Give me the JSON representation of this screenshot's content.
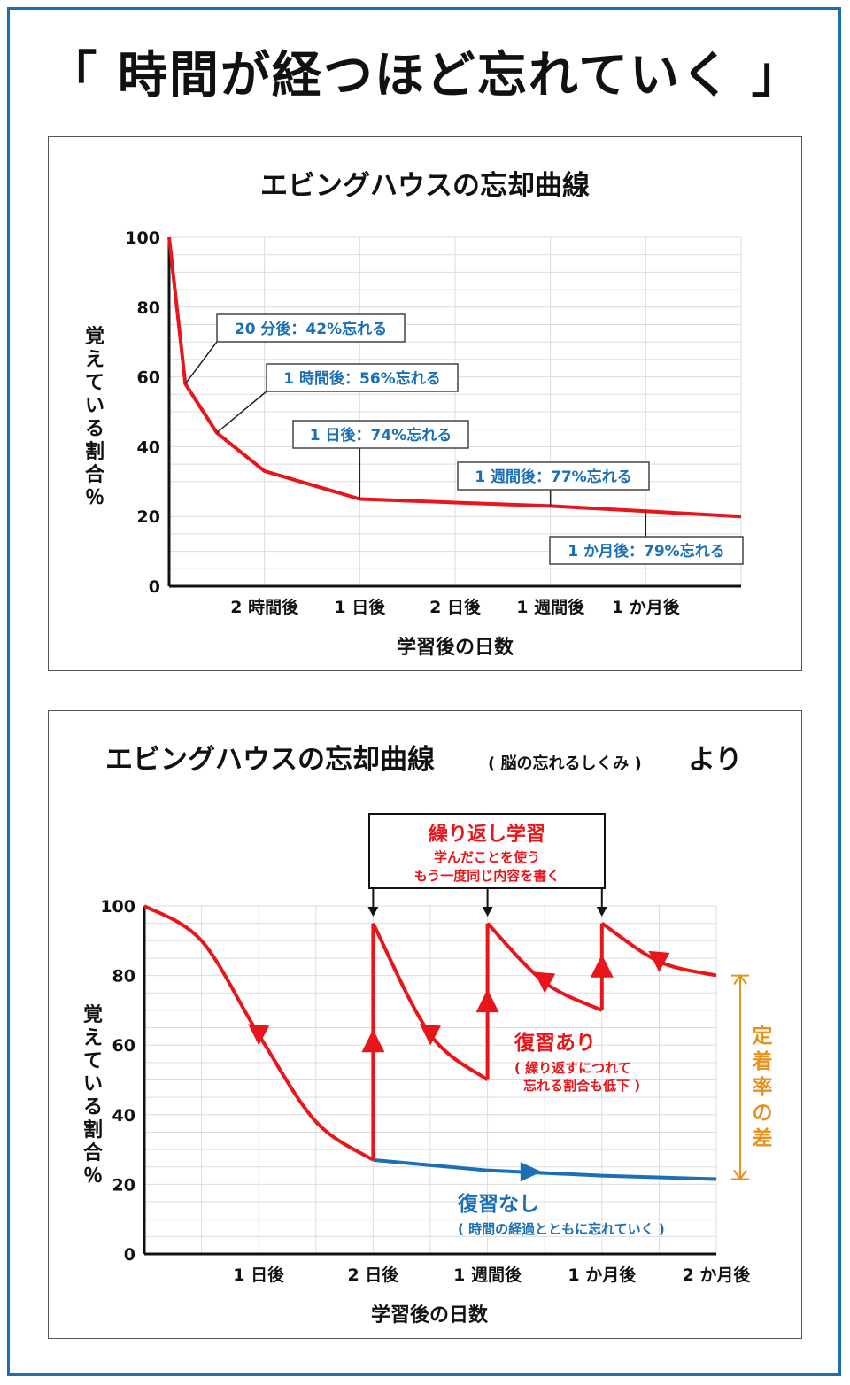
{
  "page_title": "「 時間が経つほど忘れていく 」",
  "colors": {
    "frame": "#1a6fb5",
    "red": "#e8151b",
    "blue": "#1a6fb5",
    "orange": "#e8901c",
    "label_blue": "#1a6fb5"
  },
  "chart_data": [
    {
      "type": "line",
      "title": "エビングハウスの忘却曲線",
      "xlabel": "学習後の日数",
      "ylabel": "覚えている割合％",
      "ylim": [
        0,
        100
      ],
      "yticks": [
        "0",
        "20",
        "40",
        "60",
        "80",
        "100"
      ],
      "xticks": [
        "2 時間後",
        "1 日後",
        "2 日後",
        "1 週間後",
        "1 か月後"
      ],
      "series": [
        {
          "values": [
            {
              "x": 0,
              "y": 100
            },
            {
              "x": 0.17,
              "y": 58
            },
            {
              "x": 0.5,
              "y": 44
            },
            {
              "x": 1,
              "y": 33
            },
            {
              "x": 2,
              "y": 25
            },
            {
              "x": 3,
              "y": 24
            },
            {
              "x": 4,
              "y": 23
            },
            {
              "x": 5,
              "y": 21.5
            },
            {
              "x": 6,
              "y": 20
            }
          ]
        }
      ],
      "annotations": [
        {
          "text": "20 分後：42%忘れる",
          "x": 0.17,
          "y": 58
        },
        {
          "text": "1 時間後：56%忘れる",
          "x": 0.5,
          "y": 44
        },
        {
          "text": "1 日後：74%忘れる",
          "x": 2,
          "y": 25
        },
        {
          "text": "1 週間後：77%忘れる",
          "x": 4,
          "y": 23
        },
        {
          "text": "1 か月後：79%忘れる",
          "x": 5,
          "y": 21.5
        }
      ]
    },
    {
      "type": "line",
      "title": "エビングハウスの忘却曲線",
      "title_note": "( 脳の忘れるしくみ )",
      "title_suffix": "より",
      "xlabel": "学習後の日数",
      "ylabel": "覚えている割合％",
      "ylim": [
        0,
        100
      ],
      "yticks": [
        "0",
        "20",
        "40",
        "60",
        "80",
        "100"
      ],
      "xticks": [
        "1 日後",
        "2 日後",
        "1 週間後",
        "1 か月後",
        "2 か月後"
      ],
      "review_box": {
        "title": "繰り返し学習",
        "line1": "学んだことを使う",
        "line2": "もう一度同じ内容を書く"
      },
      "series": [
        {
          "name": "復習あり",
          "note": "( 繰り返すにつれて",
          "note2": "忘れる割合も低下 )",
          "segments": [
            [
              {
                "x": 0,
                "y": 100
              },
              {
                "x": 0.5,
                "y": 90
              },
              {
                "x": 1,
                "y": 63
              },
              {
                "x": 1.5,
                "y": 38
              },
              {
                "x": 2,
                "y": 27
              }
            ],
            [
              {
                "x": 2,
                "y": 95
              },
              {
                "x": 2.5,
                "y": 63
              },
              {
                "x": 3,
                "y": 50
              }
            ],
            [
              {
                "x": 3,
                "y": 95
              },
              {
                "x": 3.5,
                "y": 78
              },
              {
                "x": 4,
                "y": 70
              }
            ],
            [
              {
                "x": 4,
                "y": 95
              },
              {
                "x": 4.5,
                "y": 84
              },
              {
                "x": 5,
                "y": 80
              }
            ]
          ]
        },
        {
          "name": "復習なし",
          "note": "( 時間の経過とともに忘れていく )",
          "values": [
            {
              "x": 2,
              "y": 27
            },
            {
              "x": 3,
              "y": 24
            },
            {
              "x": 4,
              "y": 22.5
            },
            {
              "x": 5,
              "y": 21.5
            }
          ]
        }
      ],
      "retention_gap_label": "定着率の差",
      "retention_gap": [
        21.5,
        80
      ]
    }
  ]
}
